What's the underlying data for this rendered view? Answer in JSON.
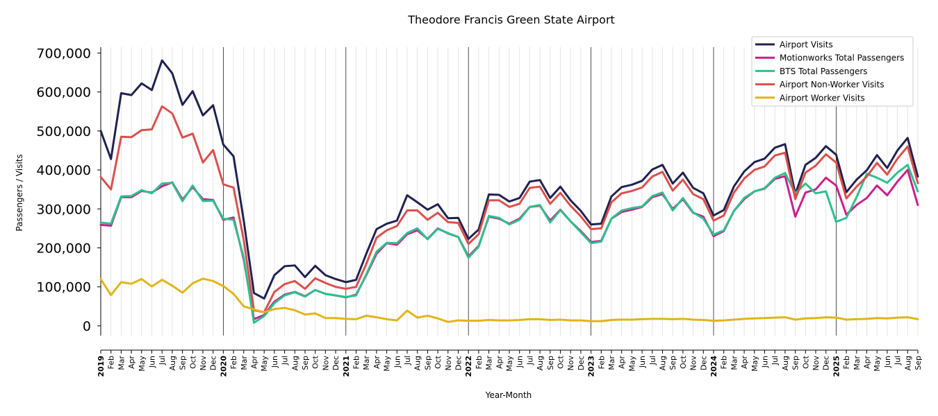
{
  "chart_data": {
    "type": "line",
    "title": "Theodore Francis Green State Airport",
    "xlabel": "Year-Month",
    "ylabel": "Passengers / Visits",
    "ylim": [
      -25000,
      715000
    ],
    "yticks": [
      0,
      100000,
      200000,
      300000,
      400000,
      500000,
      600000,
      700000
    ],
    "ytick_labels": [
      "0",
      "100,000",
      "200,000",
      "300,000",
      "400,000",
      "500,000",
      "600,000",
      "700,000"
    ],
    "grid": true,
    "legend_position": "top-right",
    "x": [
      "2019-01",
      "2019-02",
      "2019-03",
      "2019-04",
      "2019-05",
      "2019-06",
      "2019-07",
      "2019-08",
      "2019-09",
      "2019-10",
      "2019-11",
      "2019-12",
      "2020-01",
      "2020-02",
      "2020-03",
      "2020-04",
      "2020-05",
      "2020-06",
      "2020-07",
      "2020-08",
      "2020-09",
      "2020-10",
      "2020-11",
      "2020-12",
      "2021-01",
      "2021-02",
      "2021-03",
      "2021-04",
      "2021-05",
      "2021-06",
      "2021-07",
      "2021-08",
      "2021-09",
      "2021-10",
      "2021-11",
      "2021-12",
      "2022-01",
      "2022-02",
      "2022-03",
      "2022-04",
      "2022-05",
      "2022-06",
      "2022-07",
      "2022-08",
      "2022-09",
      "2022-10",
      "2022-11",
      "2022-12",
      "2023-01",
      "2023-02",
      "2023-03",
      "2023-04",
      "2023-05",
      "2023-06",
      "2023-07",
      "2023-08",
      "2023-09",
      "2023-10",
      "2023-11",
      "2023-12",
      "2024-01",
      "2024-02",
      "2024-03",
      "2024-04",
      "2024-05",
      "2024-06",
      "2024-07",
      "2024-08",
      "2024-09",
      "2024-10",
      "2024-11",
      "2024-12",
      "2025-01",
      "2025-02",
      "2025-03",
      "2025-04",
      "2025-05",
      "2025-06",
      "2025-07",
      "2025-08",
      "2025-09"
    ],
    "x_tick_labels": [
      "2019",
      "Feb",
      "Mar",
      "Apr",
      "May",
      "Jun",
      "Jul",
      "Aug",
      "Sep",
      "Oct",
      "Nov",
      "Dec",
      "2020",
      "Feb",
      "Mar",
      "Apr",
      "May",
      "Jun",
      "Jul",
      "Aug",
      "Sep",
      "Oct",
      "Nov",
      "Dec",
      "2021",
      "Feb",
      "Mar",
      "Apr",
      "May",
      "Jun",
      "Jul",
      "Aug",
      "Sep",
      "Oct",
      "Nov",
      "Dec",
      "2022",
      "Feb",
      "Mar",
      "Apr",
      "May",
      "Jun",
      "Jul",
      "Aug",
      "Sep",
      "Oct",
      "Nov",
      "Dec",
      "2023",
      "Feb",
      "Mar",
      "Apr",
      "May",
      "Jun",
      "Jul",
      "Aug",
      "Sep",
      "Oct",
      "Nov",
      "Dec",
      "2024",
      "Feb",
      "Mar",
      "Apr",
      "May",
      "Jun",
      "Jul",
      "Aug",
      "Sep",
      "Oct",
      "Nov",
      "Dec",
      "2025",
      "Feb",
      "Mar",
      "Apr",
      "May",
      "Jun",
      "Jul",
      "Aug",
      "Sep"
    ],
    "series": [
      {
        "name": "Airport Visits",
        "color": "#1f2150",
        "values": [
          500000,
          428000,
          597000,
          592000,
          622000,
          605000,
          681000,
          648000,
          567000,
          602000,
          540000,
          566000,
          465000,
          435000,
          270000,
          84000,
          70000,
          130000,
          153000,
          155000,
          125000,
          154000,
          130000,
          120000,
          112000,
          118000,
          185000,
          248000,
          262000,
          270000,
          335000,
          317000,
          298000,
          312000,
          276000,
          277000,
          223000,
          247000,
          337000,
          336000,
          319000,
          328000,
          370000,
          374000,
          328000,
          357000,
          322000,
          295000,
          260000,
          262000,
          332000,
          356000,
          362000,
          372000,
          401000,
          413000,
          365000,
          393000,
          354000,
          340000,
          283000,
          297000,
          358000,
          396000,
          420000,
          429000,
          457000,
          466000,
          338000,
          413000,
          431000,
          461000,
          439000,
          343000,
          375000,
          399000,
          438000,
          405000,
          450000,
          482000,
          383000
        ]
      },
      {
        "name": "Motionworks Total Passengers",
        "color": "#cc1e8c",
        "values": [
          259000,
          257000,
          330000,
          330000,
          346000,
          342000,
          358000,
          368000,
          324000,
          356000,
          325000,
          323000,
          272000,
          278000,
          170000,
          17000,
          28000,
          62000,
          80000,
          87000,
          76000,
          92000,
          82000,
          78000,
          73000,
          80000,
          130000,
          185000,
          212000,
          208000,
          235000,
          245000,
          223000,
          250000,
          237000,
          228000,
          178000,
          205000,
          280000,
          275000,
          262000,
          275000,
          305000,
          308000,
          270000,
          298000,
          268000,
          243000,
          215000,
          218000,
          275000,
          292000,
          298000,
          305000,
          330000,
          338000,
          300000,
          325000,
          290000,
          280000,
          230000,
          243000,
          295000,
          325000,
          345000,
          352000,
          377000,
          384000,
          280000,
          342000,
          350000,
          380000,
          360000,
          285000,
          310000,
          328000,
          360000,
          335000,
          370000,
          400000,
          310000
        ]
      },
      {
        "name": "BTS Total Passengers",
        "color": "#2dc08c",
        "values": [
          265000,
          262000,
          332000,
          333000,
          348000,
          340000,
          365000,
          367000,
          320000,
          360000,
          320000,
          321000,
          275000,
          272000,
          175000,
          8000,
          25000,
          58000,
          78000,
          86000,
          75000,
          92000,
          82000,
          78000,
          74000,
          78000,
          132000,
          190000,
          213000,
          212000,
          238000,
          250000,
          222000,
          249000,
          238000,
          228000,
          175000,
          203000,
          282000,
          277000,
          260000,
          272000,
          305000,
          310000,
          265000,
          297000,
          268000,
          240000,
          212000,
          216000,
          275000,
          296000,
          302000,
          306000,
          333000,
          342000,
          296000,
          328000,
          291000,
          275000,
          234000,
          245000,
          295000,
          328000,
          345000,
          353000,
          380000,
          392000,
          340000,
          365000,
          340000,
          345000,
          267000,
          277000,
          330000,
          390000,
          380000,
          367000,
          393000,
          413000,
          345000
        ]
      },
      {
        "name": "Airport Non-Worker Visits",
        "color": "#d9504c",
        "values": [
          382000,
          350000,
          485000,
          484000,
          502000,
          504000,
          563000,
          545000,
          483000,
          493000,
          419000,
          451000,
          363000,
          355000,
          220000,
          40000,
          35000,
          87000,
          107000,
          115000,
          95000,
          122000,
          110000,
          100000,
          95000,
          100000,
          159000,
          226000,
          245000,
          256000,
          296000,
          296000,
          272000,
          290000,
          266000,
          264000,
          210000,
          235000,
          322000,
          322000,
          305000,
          313000,
          354000,
          357000,
          313000,
          341000,
          308000,
          281000,
          248000,
          250000,
          317000,
          340000,
          346000,
          355000,
          383000,
          395000,
          347000,
          375000,
          338000,
          325000,
          270000,
          283000,
          342000,
          378000,
          400000,
          409000,
          437000,
          444000,
          325000,
          393000,
          411000,
          440000,
          419000,
          327000,
          357000,
          383000,
          418000,
          388000,
          429000,
          460000,
          366000
        ]
      },
      {
        "name": "Airport Worker Visits",
        "color": "#e0b51a",
        "values": [
          120000,
          79000,
          112000,
          108000,
          120000,
          101000,
          118000,
          103000,
          85000,
          109000,
          121000,
          115000,
          102000,
          82000,
          50000,
          42000,
          35000,
          43000,
          46000,
          40000,
          29000,
          32000,
          20000,
          20000,
          18000,
          17000,
          26000,
          22000,
          17000,
          14000,
          39000,
          21000,
          26000,
          19000,
          10000,
          14000,
          13000,
          13000,
          15000,
          14000,
          14000,
          15000,
          17000,
          17000,
          15000,
          16000,
          14000,
          14000,
          12000,
          12000,
          15000,
          16000,
          16000,
          17000,
          18000,
          18000,
          17000,
          18000,
          16000,
          15000,
          13000,
          14000,
          16000,
          18000,
          19000,
          20000,
          21000,
          22000,
          16000,
          19000,
          20000,
          22000,
          21000,
          16000,
          17000,
          18000,
          20000,
          19000,
          21000,
          22000,
          17000
        ]
      }
    ]
  }
}
